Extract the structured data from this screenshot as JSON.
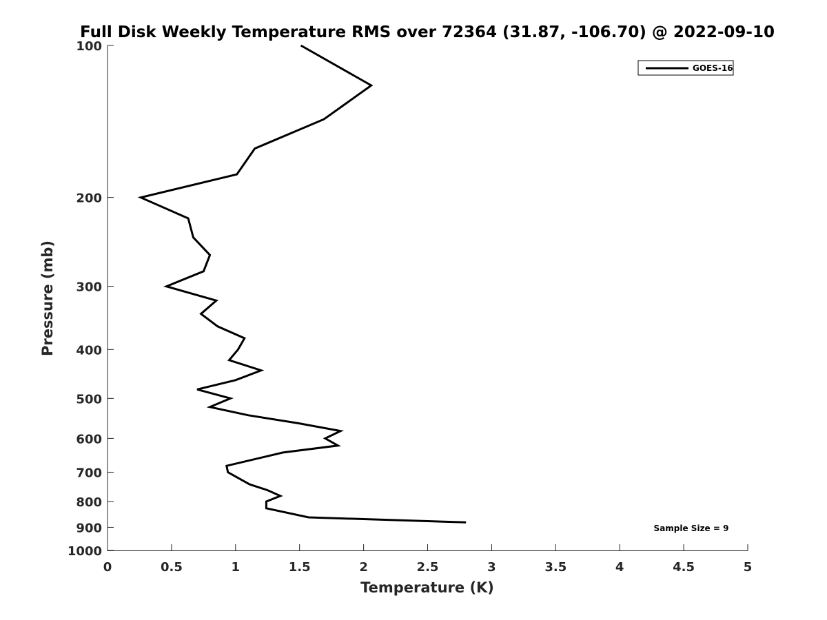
{
  "chart_data": {
    "type": "line",
    "title": "Full Disk Weekly Temperature RMS over 72364 (31.87, -106.70) @ 2022-09-10",
    "xlabel": "Temperature (K)",
    "ylabel": "Pressure (mb)",
    "xlim": [
      0,
      5
    ],
    "ylim": [
      100,
      1000
    ],
    "yscale": "log",
    "y_reversed": true,
    "grid": false,
    "xticks": [
      "0",
      "0.5",
      "1",
      "1.5",
      "2",
      "2.5",
      "3",
      "3.5",
      "4",
      "4.5",
      "5"
    ],
    "yticks": [
      "100",
      "200",
      "300",
      "400",
      "500",
      "600",
      "700",
      "800",
      "900",
      "1000"
    ],
    "legend": {
      "position": "top-right",
      "entries": [
        "GOES-16"
      ]
    },
    "annotation": "Sample Size = 9",
    "series": [
      {
        "name": "GOES-16",
        "color": "#000000",
        "x": [
          1.51,
          2.06,
          1.69,
          1.15,
          1.01,
          0.26,
          0.63,
          0.67,
          0.8,
          0.75,
          0.46,
          0.85,
          0.73,
          0.86,
          1.07,
          1.02,
          0.95,
          1.2,
          1.0,
          0.7,
          0.96,
          0.8,
          1.1,
          1.49,
          1.82,
          1.7,
          1.8,
          1.37,
          0.93,
          0.94,
          1.11,
          1.25,
          1.35,
          1.24,
          1.24,
          1.57,
          2.8
        ],
        "y": [
          100,
          120,
          140,
          160,
          180,
          200,
          220,
          240,
          260,
          280,
          300,
          320,
          340,
          360,
          380,
          400,
          420,
          440,
          460,
          480,
          500,
          520,
          540,
          560,
          580,
          600,
          620,
          640,
          680,
          700,
          740,
          760,
          780,
          800,
          825,
          860,
          880
        ]
      }
    ]
  }
}
